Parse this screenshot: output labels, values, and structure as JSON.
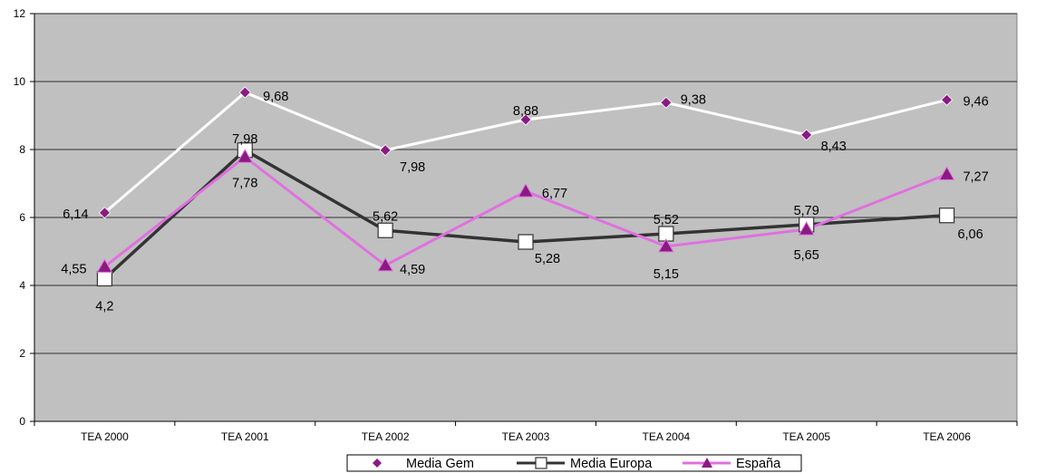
{
  "chart_data": {
    "type": "line",
    "categories": [
      "TEA 2000",
      "TEA 2001",
      "TEA 2002",
      "TEA 2003",
      "TEA 2004",
      "TEA 2005",
      "TEA 2006"
    ],
    "ylim": [
      0,
      12
    ],
    "yticks": [
      "0",
      "2",
      "4",
      "6",
      "8",
      "10",
      "12"
    ],
    "grid": true,
    "legend_position": "bottom-center",
    "plot_background": "#c0c0c0",
    "series": [
      {
        "name": "Media Gem",
        "values": [
          6.14,
          9.68,
          7.98,
          8.88,
          9.38,
          8.43,
          9.46
        ],
        "labels": [
          "6,14",
          "9,68",
          "7,98",
          "8,88",
          "9,38",
          "8,43",
          "9,46"
        ],
        "line_color": "#ffffff",
        "marker": "diamond",
        "marker_color": "#8b1a82"
      },
      {
        "name": "Media Europa",
        "values": [
          4.2,
          7.98,
          5.62,
          5.28,
          5.52,
          5.79,
          6.06
        ],
        "labels": [
          "4,2",
          "7,98",
          "5,62",
          "5,28",
          "5,52",
          "5,79",
          "6,06"
        ],
        "line_color": "#333333",
        "marker": "square",
        "marker_color": "#ffffff"
      },
      {
        "name": "España",
        "values": [
          4.55,
          7.78,
          4.59,
          6.77,
          5.15,
          5.65,
          7.27
        ],
        "labels": [
          "4,55",
          "7,78",
          "4,59",
          "6,77",
          "5,15",
          "5,65",
          "7,27"
        ],
        "line_color": "#e070e0",
        "marker": "triangle",
        "marker_color": "#8b1a82"
      }
    ]
  }
}
